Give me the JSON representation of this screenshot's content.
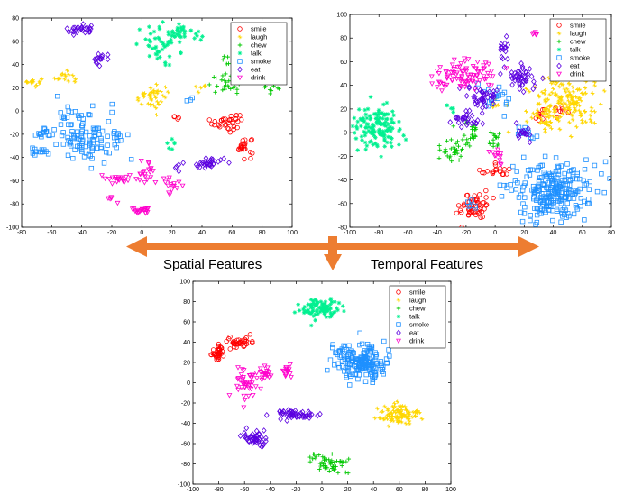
{
  "captions": {
    "left": "Spatial Features",
    "right": "Temporal Features"
  },
  "arrow_color": "#ED7D31",
  "legend_labels": [
    "smile",
    "laugh",
    "chew",
    "talk",
    "smoke",
    "eat",
    "drink"
  ],
  "series_style": [
    {
      "name": "smile",
      "color": "#FF0000",
      "marker": "circle"
    },
    {
      "name": "laugh",
      "color": "#FFD700",
      "marker": "star"
    },
    {
      "name": "chew",
      "color": "#00C800",
      "marker": "plus"
    },
    {
      "name": "talk",
      "color": "#00F090",
      "marker": "asterisk"
    },
    {
      "name": "smoke",
      "color": "#1E90FF",
      "marker": "square"
    },
    {
      "name": "eat",
      "color": "#5B00E0",
      "marker": "diamond"
    },
    {
      "name": "drink",
      "color": "#FF00CC",
      "marker": "triangle-down"
    }
  ],
  "chart_data": [
    {
      "type": "scatter",
      "id": "spatial",
      "xlim": [
        -80,
        100
      ],
      "ylim": [
        -100,
        80
      ],
      "xticks": [
        -80,
        -60,
        -40,
        -20,
        0,
        20,
        40,
        60,
        80,
        100
      ],
      "yticks": [
        -100,
        -80,
        -60,
        -40,
        -20,
        0,
        20,
        40,
        60,
        80
      ],
      "legend": "top-right",
      "clusters": [
        {
          "series": "smile",
          "cx": 55,
          "cy": -10,
          "sx": 4,
          "sy": 4,
          "n": 25
        },
        {
          "series": "smile",
          "cx": 68,
          "cy": -30,
          "sx": 3,
          "sy": 4,
          "n": 25
        },
        {
          "series": "smile",
          "cx": 63,
          "cy": -8,
          "sx": 3,
          "sy": 3,
          "n": 10
        },
        {
          "series": "smile",
          "cx": 22,
          "cy": -5,
          "sx": 1.5,
          "sy": 1.5,
          "n": 4
        },
        {
          "series": "laugh",
          "cx": -73,
          "cy": 25,
          "sx": 3,
          "sy": 2,
          "n": 15
        },
        {
          "series": "laugh",
          "cx": -52,
          "cy": 30,
          "sx": 3,
          "sy": 3,
          "n": 15
        },
        {
          "series": "laugh",
          "cx": 7,
          "cy": 12,
          "sx": 6,
          "sy": 5,
          "n": 40
        },
        {
          "series": "laugh",
          "cx": 40,
          "cy": 20,
          "sx": 2,
          "sy": 2,
          "n": 6
        },
        {
          "series": "chew",
          "cx": 55,
          "cy": 23,
          "sx": 6,
          "sy": 4,
          "n": 25
        },
        {
          "series": "chew",
          "cx": 85,
          "cy": 20,
          "sx": 3,
          "sy": 2,
          "n": 8
        },
        {
          "series": "chew",
          "cx": 58,
          "cy": 44,
          "sx": 2,
          "sy": 2,
          "n": 5
        },
        {
          "series": "talk",
          "cx": 15,
          "cy": 58,
          "sx": 9,
          "sy": 8,
          "n": 55
        },
        {
          "series": "talk",
          "cx": 28,
          "cy": 66,
          "sx": 6,
          "sy": 3,
          "n": 25
        },
        {
          "series": "talk",
          "cx": 20,
          "cy": -28,
          "sx": 2,
          "sy": 3,
          "n": 6
        },
        {
          "series": "smoke",
          "cx": -37,
          "cy": -20,
          "sx": 10,
          "sy": 12,
          "n": 110
        },
        {
          "series": "smoke",
          "cx": -66,
          "cy": -20,
          "sx": 3,
          "sy": 2,
          "n": 15
        },
        {
          "series": "smoke",
          "cx": -68,
          "cy": -36,
          "sx": 4,
          "sy": 2,
          "n": 12
        },
        {
          "series": "smoke",
          "cx": -18,
          "cy": -22,
          "sx": 3,
          "sy": 2,
          "n": 8
        },
        {
          "series": "smoke",
          "cx": 33,
          "cy": 10,
          "sx": 2,
          "sy": 2,
          "n": 3
        },
        {
          "series": "eat",
          "cx": -40,
          "cy": 70,
          "sx": 5,
          "sy": 2,
          "n": 25
        },
        {
          "series": "eat",
          "cx": -28,
          "cy": 45,
          "sx": 2,
          "sy": 3,
          "n": 15
        },
        {
          "series": "eat",
          "cx": 43,
          "cy": -45,
          "sx": 6,
          "sy": 3,
          "n": 30
        },
        {
          "series": "eat",
          "cx": 25,
          "cy": -48,
          "sx": 2,
          "sy": 2,
          "n": 5
        },
        {
          "series": "drink",
          "cx": 0,
          "cy": -85,
          "sx": 3,
          "sy": 2,
          "n": 20
        },
        {
          "series": "drink",
          "cx": -15,
          "cy": -58,
          "sx": 4,
          "sy": 2,
          "n": 20
        },
        {
          "series": "drink",
          "cx": 3,
          "cy": -53,
          "sx": 5,
          "sy": 5,
          "n": 20
        },
        {
          "series": "drink",
          "cx": 18,
          "cy": -62,
          "sx": 4,
          "sy": 4,
          "n": 15
        },
        {
          "series": "drink",
          "cx": -22,
          "cy": -75,
          "sx": 2,
          "sy": 2,
          "n": 5
        }
      ]
    },
    {
      "type": "scatter",
      "id": "temporal",
      "xlim": [
        -100,
        80
      ],
      "ylim": [
        -80,
        100
      ],
      "xticks": [
        -100,
        -80,
        -60,
        -40,
        -20,
        0,
        20,
        40,
        60,
        80
      ],
      "yticks": [
        -80,
        -60,
        -40,
        -20,
        0,
        20,
        40,
        60,
        80,
        100
      ],
      "legend": "top-right",
      "clusters": [
        {
          "series": "smile",
          "cx": -14,
          "cy": -62,
          "sx": 5,
          "sy": 6,
          "n": 55
        },
        {
          "series": "smile",
          "cx": 0,
          "cy": -32,
          "sx": 5,
          "sy": 3,
          "n": 20
        },
        {
          "series": "smile",
          "cx": 30,
          "cy": 15,
          "sx": 3,
          "sy": 3,
          "n": 10
        },
        {
          "series": "smile",
          "cx": 45,
          "cy": 18,
          "sx": 3,
          "sy": 3,
          "n": 8
        },
        {
          "series": "laugh",
          "cx": 48,
          "cy": 28,
          "sx": 12,
          "sy": 12,
          "n": 160
        },
        {
          "series": "laugh",
          "cx": 35,
          "cy": 10,
          "sx": 6,
          "sy": 6,
          "n": 30
        },
        {
          "series": "laugh",
          "cx": 0,
          "cy": 25,
          "sx": 3,
          "sy": 2,
          "n": 6
        },
        {
          "series": "chew",
          "cx": -30,
          "cy": -15,
          "sx": 4,
          "sy": 5,
          "n": 30
        },
        {
          "series": "chew",
          "cx": -18,
          "cy": 0,
          "sx": 4,
          "sy": 6,
          "n": 25
        },
        {
          "series": "chew",
          "cx": 0,
          "cy": -5,
          "sx": 2,
          "sy": 5,
          "n": 15
        },
        {
          "series": "talk",
          "cx": -82,
          "cy": 5,
          "sx": 8,
          "sy": 8,
          "n": 140
        },
        {
          "series": "talk",
          "cx": -30,
          "cy": 20,
          "sx": 2,
          "sy": 2,
          "n": 5
        },
        {
          "series": "smoke",
          "cx": 38,
          "cy": -50,
          "sx": 14,
          "sy": 12,
          "n": 260
        },
        {
          "series": "smoke",
          "cx": 0,
          "cy": 30,
          "sx": 6,
          "sy": 6,
          "n": 20
        },
        {
          "series": "smoke",
          "cx": 20,
          "cy": 0,
          "sx": 4,
          "sy": 3,
          "n": 10
        },
        {
          "series": "smoke",
          "cx": -15,
          "cy": -60,
          "sx": 3,
          "sy": 3,
          "n": 6
        },
        {
          "series": "eat",
          "cx": 5,
          "cy": 70,
          "sx": 2,
          "sy": 4,
          "n": 15
        },
        {
          "series": "eat",
          "cx": 20,
          "cy": 45,
          "sx": 5,
          "sy": 5,
          "n": 45
        },
        {
          "series": "eat",
          "cx": -10,
          "cy": 30,
          "sx": 6,
          "sy": 5,
          "n": 40
        },
        {
          "series": "eat",
          "cx": -18,
          "cy": 12,
          "sx": 6,
          "sy": 4,
          "n": 30
        },
        {
          "series": "eat",
          "cx": 20,
          "cy": 0,
          "sx": 4,
          "sy": 3,
          "n": 15
        },
        {
          "series": "drink",
          "cx": -20,
          "cy": 48,
          "sx": 12,
          "sy": 7,
          "n": 90
        },
        {
          "series": "drink",
          "cx": 28,
          "cy": 83,
          "sx": 1.5,
          "sy": 1.5,
          "n": 5
        },
        {
          "series": "drink",
          "cx": 0,
          "cy": -20,
          "sx": 4,
          "sy": 3,
          "n": 12
        }
      ]
    },
    {
      "type": "scatter",
      "id": "combined",
      "xlim": [
        -100,
        100
      ],
      "ylim": [
        -100,
        100
      ],
      "xticks": [
        -100,
        -80,
        -60,
        -40,
        -20,
        0,
        20,
        40,
        60,
        80,
        100
      ],
      "yticks": [
        -100,
        -80,
        -60,
        -40,
        -20,
        0,
        20,
        40,
        60,
        80,
        100
      ],
      "legend": "top-right",
      "clusters": [
        {
          "series": "smile",
          "cx": -80,
          "cy": 30,
          "sx": 3,
          "sy": 4,
          "n": 40
        },
        {
          "series": "smile",
          "cx": -65,
          "cy": 40,
          "sx": 5,
          "sy": 3,
          "n": 40
        },
        {
          "series": "laugh",
          "cx": 60,
          "cy": -32,
          "sx": 8,
          "sy": 5,
          "n": 90
        },
        {
          "series": "chew",
          "cx": 5,
          "cy": -80,
          "sx": 8,
          "sy": 5,
          "n": 50
        },
        {
          "series": "talk",
          "cx": 0,
          "cy": 73,
          "sx": 8,
          "sy": 5,
          "n": 90
        },
        {
          "series": "smoke",
          "cx": 30,
          "cy": 20,
          "sx": 10,
          "sy": 9,
          "n": 170
        },
        {
          "series": "smoke",
          "cx": 12,
          "cy": 32,
          "sx": 2,
          "sy": 2,
          "n": 6
        },
        {
          "series": "eat",
          "cx": -20,
          "cy": -32,
          "sx": 8,
          "sy": 2,
          "n": 40
        },
        {
          "series": "eat",
          "cx": -52,
          "cy": -55,
          "sx": 5,
          "sy": 4,
          "n": 45
        },
        {
          "series": "eat",
          "cx": -30,
          "cy": -28,
          "sx": 3,
          "sy": 2,
          "n": 10
        },
        {
          "series": "drink",
          "cx": -60,
          "cy": 0,
          "sx": 5,
          "sy": 7,
          "n": 40
        },
        {
          "series": "drink",
          "cx": -45,
          "cy": 10,
          "sx": 3,
          "sy": 3,
          "n": 20
        },
        {
          "series": "drink",
          "cx": -28,
          "cy": 10,
          "sx": 2,
          "sy": 4,
          "n": 15
        }
      ]
    }
  ]
}
